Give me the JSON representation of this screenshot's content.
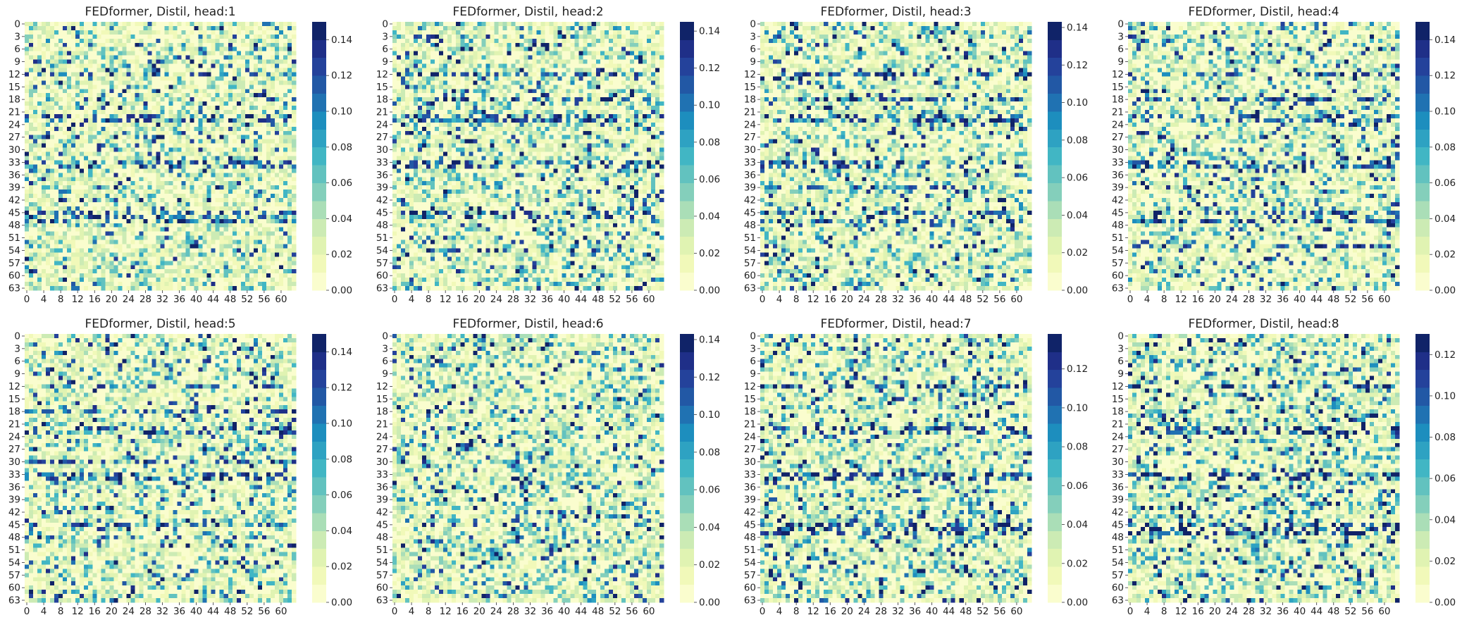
{
  "chart_data": [
    {
      "type": "heatmap",
      "title": "FEDformer, Distil, head:1",
      "rows": 64,
      "cols": 64,
      "vmin": 0.0,
      "vmax": 0.15,
      "colorbar_ticks": [
        "0.00",
        "0.02",
        "0.04",
        "0.06",
        "0.08",
        "0.10",
        "0.12",
        "0.14"
      ],
      "y_ticks": [
        "0",
        "3",
        "6",
        "9",
        "12",
        "15",
        "18",
        "21",
        "24",
        "27",
        "30",
        "33",
        "36",
        "39",
        "42",
        "45",
        "48",
        "51",
        "54",
        "57",
        "60",
        "63"
      ],
      "x_ticks": [
        "0",
        "4",
        "8",
        "12",
        "16",
        "20",
        "24",
        "28",
        "32",
        "36",
        "40",
        "44",
        "48",
        "52",
        "56",
        "60"
      ],
      "dense_rows": [
        12,
        22,
        23,
        33,
        34,
        45,
        46,
        47
      ],
      "seed": 11
    },
    {
      "type": "heatmap",
      "title": "FEDformer, Distil, head:2",
      "rows": 64,
      "cols": 64,
      "vmin": 0.0,
      "vmax": 0.145,
      "colorbar_ticks": [
        "0.00",
        "0.02",
        "0.04",
        "0.06",
        "0.08",
        "0.10",
        "0.12",
        "0.14"
      ],
      "y_ticks": [
        "0",
        "3",
        "6",
        "9",
        "12",
        "15",
        "18",
        "21",
        "24",
        "27",
        "30",
        "33",
        "36",
        "39",
        "42",
        "45",
        "48",
        "51",
        "54",
        "57",
        "60",
        "63"
      ],
      "x_ticks": [
        "0",
        "4",
        "8",
        "12",
        "16",
        "20",
        "24",
        "28",
        "32",
        "36",
        "40",
        "44",
        "48",
        "52",
        "56",
        "60"
      ],
      "dense_rows": [
        12,
        18,
        22,
        23,
        33,
        34,
        45,
        46,
        54
      ],
      "seed": 23
    },
    {
      "type": "heatmap",
      "title": "FEDformer, Distil, head:3",
      "rows": 64,
      "cols": 64,
      "vmin": 0.0,
      "vmax": 0.143,
      "colorbar_ticks": [
        "0.00",
        "0.02",
        "0.04",
        "0.06",
        "0.08",
        "0.10",
        "0.12",
        "0.14"
      ],
      "y_ticks": [
        "0",
        "3",
        "6",
        "9",
        "12",
        "15",
        "18",
        "21",
        "24",
        "27",
        "30",
        "33",
        "36",
        "39",
        "42",
        "45",
        "48",
        "51",
        "54",
        "57",
        "60",
        "63"
      ],
      "x_ticks": [
        "0",
        "4",
        "8",
        "12",
        "16",
        "20",
        "24",
        "28",
        "32",
        "36",
        "40",
        "44",
        "48",
        "52",
        "56",
        "60"
      ],
      "dense_rows": [
        12,
        18,
        22,
        23,
        33,
        34,
        39,
        45,
        47
      ],
      "seed": 37
    },
    {
      "type": "heatmap",
      "title": "FEDformer, Distil, head:4",
      "rows": 64,
      "cols": 64,
      "vmin": 0.0,
      "vmax": 0.15,
      "colorbar_ticks": [
        "0.00",
        "0.02",
        "0.04",
        "0.06",
        "0.08",
        "0.10",
        "0.12",
        "0.14"
      ],
      "y_ticks": [
        "0",
        "3",
        "6",
        "9",
        "12",
        "15",
        "18",
        "21",
        "24",
        "27",
        "30",
        "33",
        "36",
        "39",
        "42",
        "45",
        "48",
        "51",
        "54",
        "57",
        "60",
        "63"
      ],
      "x_ticks": [
        "0",
        "4",
        "8",
        "12",
        "16",
        "20",
        "24",
        "28",
        "32",
        "36",
        "40",
        "44",
        "48",
        "52",
        "56",
        "60"
      ],
      "dense_rows": [
        12,
        18,
        22,
        23,
        33,
        34,
        45,
        47,
        53
      ],
      "seed": 41
    },
    {
      "type": "heatmap",
      "title": "FEDformer, Distil, head:5",
      "rows": 64,
      "cols": 64,
      "vmin": 0.0,
      "vmax": 0.15,
      "colorbar_ticks": [
        "0.00",
        "0.02",
        "0.04",
        "0.06",
        "0.08",
        "0.10",
        "0.12",
        "0.14"
      ],
      "y_ticks": [
        "0",
        "3",
        "6",
        "9",
        "12",
        "15",
        "18",
        "21",
        "24",
        "27",
        "30",
        "33",
        "36",
        "39",
        "42",
        "45",
        "48",
        "51",
        "54",
        "57",
        "60",
        "63"
      ],
      "x_ticks": [
        "0",
        "4",
        "8",
        "12",
        "16",
        "20",
        "24",
        "28",
        "32",
        "36",
        "40",
        "44",
        "48",
        "52",
        "56",
        "60"
      ],
      "dense_rows": [
        12,
        18,
        22,
        23,
        30,
        33,
        34,
        45,
        48
      ],
      "seed": 53
    },
    {
      "type": "heatmap",
      "title": "FEDformer, Distil, head:6",
      "rows": 64,
      "cols": 64,
      "vmin": 0.0,
      "vmax": 0.143,
      "colorbar_ticks": [
        "0.00",
        "0.02",
        "0.04",
        "0.06",
        "0.08",
        "0.10",
        "0.12",
        "0.14"
      ],
      "y_ticks": [
        "0",
        "3",
        "6",
        "9",
        "12",
        "15",
        "18",
        "21",
        "24",
        "27",
        "30",
        "33",
        "36",
        "39",
        "42",
        "45",
        "48",
        "51",
        "54",
        "57",
        "60",
        "63"
      ],
      "x_ticks": [
        "0",
        "4",
        "8",
        "12",
        "16",
        "20",
        "24",
        "28",
        "32",
        "36",
        "40",
        "44",
        "48",
        "52",
        "56",
        "60"
      ],
      "dense_rows": [],
      "seed": 67
    },
    {
      "type": "heatmap",
      "title": "FEDformer, Distil, head:7",
      "rows": 64,
      "cols": 64,
      "vmin": 0.0,
      "vmax": 0.138,
      "colorbar_ticks": [
        "0.00",
        "0.02",
        "0.04",
        "0.06",
        "0.08",
        "0.10",
        "0.12"
      ],
      "y_ticks": [
        "0",
        "3",
        "6",
        "9",
        "12",
        "15",
        "18",
        "21",
        "24",
        "27",
        "30",
        "33",
        "36",
        "39",
        "42",
        "45",
        "48",
        "51",
        "54",
        "57",
        "60",
        "63"
      ],
      "x_ticks": [
        "0",
        "4",
        "8",
        "12",
        "16",
        "20",
        "24",
        "28",
        "32",
        "36",
        "40",
        "44",
        "48",
        "52",
        "56",
        "60"
      ],
      "dense_rows": [
        12,
        22,
        23,
        33,
        34,
        45,
        46,
        47
      ],
      "seed": 79
    },
    {
      "type": "heatmap",
      "title": "FEDformer, Distil, head:8",
      "rows": 64,
      "cols": 64,
      "vmin": 0.0,
      "vmax": 0.13,
      "colorbar_ticks": [
        "0.00",
        "0.02",
        "0.04",
        "0.06",
        "0.08",
        "0.10",
        "0.12"
      ],
      "y_ticks": [
        "0",
        "3",
        "6",
        "9",
        "12",
        "15",
        "18",
        "21",
        "24",
        "27",
        "30",
        "33",
        "36",
        "39",
        "42",
        "45",
        "48",
        "51",
        "54",
        "57",
        "60",
        "63"
      ],
      "x_ticks": [
        "0",
        "4",
        "8",
        "12",
        "16",
        "20",
        "24",
        "28",
        "32",
        "36",
        "40",
        "44",
        "48",
        "52",
        "56",
        "60"
      ],
      "dense_rows": [
        12,
        22,
        23,
        33,
        34,
        45,
        46,
        47
      ],
      "seed": 97
    }
  ],
  "colormap": {
    "name": "YlGnBu",
    "levels": 15,
    "stops": [
      "#ffffd9",
      "#edf8b1",
      "#c7e9b4",
      "#7fcdbb",
      "#41b6c4",
      "#1d91c0",
      "#225ea8",
      "#253494",
      "#081d58"
    ]
  }
}
